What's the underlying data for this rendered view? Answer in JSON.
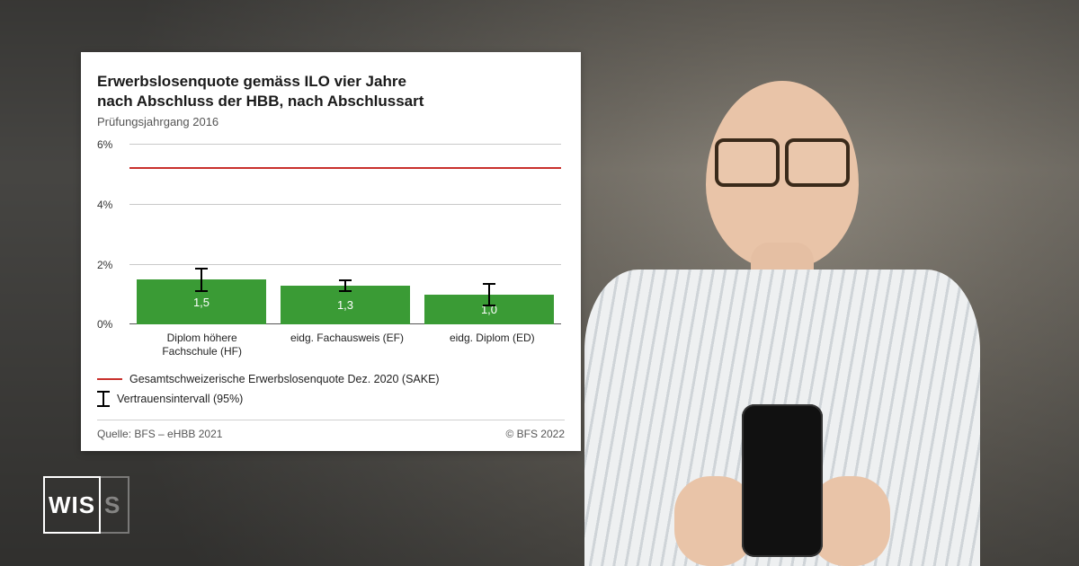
{
  "background": {
    "dominant_color": "#6e6a62"
  },
  "logo": {
    "left_text": "WIS",
    "right_text": "S",
    "border_color": "#ffffff",
    "faded_opacity": 0.35
  },
  "chart": {
    "type": "bar",
    "title_line1": "Erwerbslosenquote gemäss ILO vier Jahre",
    "title_line2": "nach Abschluss der HBB, nach Abschlussart",
    "subtitle": "Prüfungsjahrgang 2016",
    "title_fontsize": 17,
    "subtitle_fontsize": 13,
    "background_color": "#ffffff",
    "grid_color": "#c9c9c9",
    "axis_color": "#555555",
    "y": {
      "min": 0,
      "max": 6,
      "tick_step": 2,
      "ticks": [
        "0%",
        "2%",
        "4%",
        "6%"
      ],
      "label_fontsize": 12
    },
    "reference_line": {
      "value": 5.2,
      "color": "#c9302c",
      "width": 2,
      "label": "Gesamtschweizerische Erwerbslosenquote Dez. 2020 (SAKE)"
    },
    "ci_label": "Vertrauensintervall (95%)",
    "bars": [
      {
        "label_line1": "Diplom höhere",
        "label_line2": "Fachschule (HF)",
        "value": 1.5,
        "display": "1,5",
        "ci_low": 1.1,
        "ci_high": 1.9,
        "color": "#3a9b35"
      },
      {
        "label_line1": "eidg. Fachausweis (EF)",
        "label_line2": "",
        "value": 1.3,
        "display": "1,3",
        "ci_low": 1.1,
        "ci_high": 1.5,
        "color": "#3a9b35"
      },
      {
        "label_line1": "eidg. Diplom (ED)",
        "label_line2": "",
        "value": 1.0,
        "display": "1,0",
        "ci_low": 0.6,
        "ci_high": 1.4,
        "color": "#3a9b35"
      }
    ],
    "bar_width_pct": 100,
    "value_text_color": "#ffffff",
    "xlabel_fontsize": 12,
    "footer_left": "Quelle: BFS – eHBB 2021",
    "footer_right": "© BFS 2022",
    "footer_color": "#555555"
  }
}
